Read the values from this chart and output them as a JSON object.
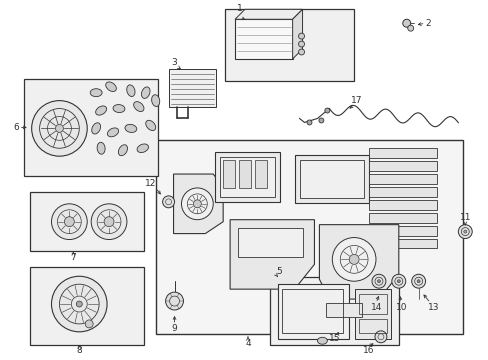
{
  "bg_color": "#ffffff",
  "fig_width": 4.89,
  "fig_height": 3.6,
  "dpi": 100,
  "lc": "#333333",
  "fc_light": "#e8e8e8",
  "fc_box": "#f0f0f0"
}
